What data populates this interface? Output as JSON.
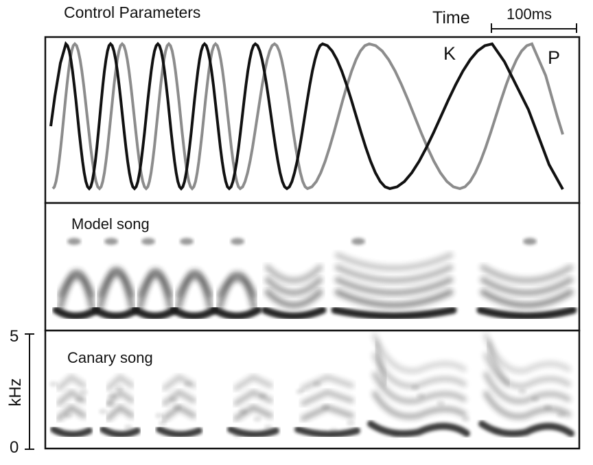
{
  "header": {
    "title": "Control Parameters",
    "time_label": "Time",
    "scale_bar_label": "100ms"
  },
  "panels": {
    "control": {
      "curve_k_label": "K",
      "curve_p_label": "P",
      "curve_k_color": "#111111",
      "curve_p_color": "#8c8c8c"
    },
    "model": {
      "label": "Model song"
    },
    "canary": {
      "label": "Canary song"
    }
  },
  "frequency_axis": {
    "label": "kHz",
    "max_label": "5",
    "min_label": "0"
  },
  "colors": {
    "frame": "#111111",
    "spectrogram_ink": "#1a1a1a",
    "background": "#ffffff"
  }
}
